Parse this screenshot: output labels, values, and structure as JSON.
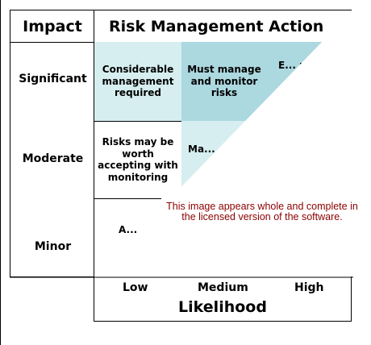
{
  "header": {
    "impact": "Impact",
    "action": "Risk Management Action"
  },
  "rows": {
    "significant": "Significant",
    "moderate": "Moderate",
    "minor": "Minor"
  },
  "cells": {
    "significant_low": "Considerable management required",
    "significant_medium": "Must manage and monitor risks",
    "significant_high": "E... m...",
    "moderate_low": "Risks may be worth accepting with monitoring",
    "moderate_medium": "Ma...",
    "minor_low": "A..."
  },
  "columns": {
    "low": "Low",
    "medium": "Medium",
    "high": "High"
  },
  "axis": {
    "likelihood": "Likelihood"
  },
  "watermark": "This image appears whole and complete in the licensed version of the software.",
  "colors": {
    "cell_light": "#d6eef0",
    "cell_mid": "#acd8e0",
    "watermark_text": "#8b0000",
    "border": "#000000"
  }
}
